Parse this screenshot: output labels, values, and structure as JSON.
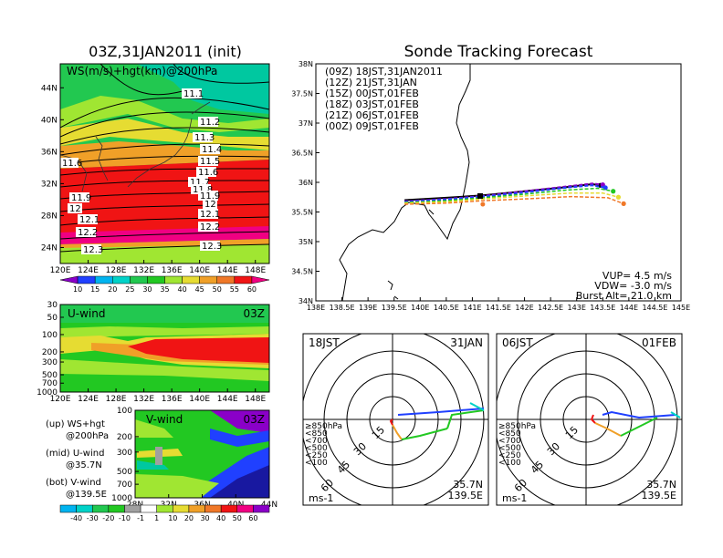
{
  "left_title": "03Z,31JAN2011 (init)",
  "main_title": "Sonde Tracking Forecast",
  "left_desc": [
    {
      "line1": "(up) WS+hgt",
      "line2": "@200hPa"
    },
    {
      "line1": "(mid) U-wind",
      "line2": "@35.7N"
    },
    {
      "line1": "(bot) V-wind",
      "line2": "@139.5E"
    }
  ],
  "colors": {
    "purple": "#8a00c8",
    "blue": "#2040ff",
    "lightblue": "#00b4f0",
    "cyan": "#00d2c8",
    "green": "#22c822",
    "lime": "#a0e632",
    "yellow": "#e6dc32",
    "orange": "#f0a028",
    "darkorange": "#f07828",
    "red": "#f01414",
    "magenta": "#f00082"
  },
  "chart_data": [
    {
      "type": "heatmap",
      "name": "ws_hgt_200hPa",
      "label": "WS(m/s)+hgt(km)@200hPa",
      "x_ticks": [
        "120E",
        "124E",
        "128E",
        "132E",
        "136E",
        "140E",
        "144E",
        "148E"
      ],
      "y_ticks": [
        "24N",
        "28N",
        "32N",
        "36N",
        "40N",
        "44N"
      ],
      "xlim": [
        120,
        150
      ],
      "ylim": [
        22,
        47
      ],
      "contour_labels": [
        "11.1",
        "11.2",
        "11.3",
        "11.4",
        "11.5",
        "11.6",
        "11.7",
        "11.8",
        "11.9",
        "12",
        "12.1",
        "12.2",
        "12.3",
        "11.6",
        "11.9",
        "12",
        "12.1",
        "12.2",
        "12.3"
      ],
      "colorbar": [
        "10",
        "15",
        "20",
        "25",
        "30",
        "35",
        "40",
        "45",
        "50",
        "55",
        "60"
      ]
    },
    {
      "type": "heatmap",
      "name": "u_wind_35.7N",
      "label": "U-wind",
      "time": "03Z",
      "x_ticks": [
        "120E",
        "124E",
        "128E",
        "132E",
        "136E",
        "140E",
        "144E",
        "148E"
      ],
      "y_ticks": [
        "30",
        "50",
        "100",
        "200",
        "300",
        "500",
        "700",
        "1000"
      ],
      "xlim": [
        120,
        150
      ],
      "ylim": [
        1000,
        30
      ]
    },
    {
      "type": "heatmap",
      "name": "v_wind_139.5E",
      "label": "V-wind",
      "time": "03Z",
      "x_ticks": [
        "28N",
        "32N",
        "36N",
        "40N",
        "44N"
      ],
      "y_ticks": [
        "100",
        "200",
        "300",
        "500",
        "700",
        "1000"
      ],
      "xlim": [
        28,
        44
      ],
      "ylim": [
        1000,
        100
      ],
      "colorbar": [
        "-40",
        "-30",
        "-20",
        "-10",
        "-1",
        "1",
        "10",
        "20",
        "30",
        "40",
        "50",
        "60"
      ]
    },
    {
      "type": "line",
      "name": "sonde_tracks",
      "title": "Sonde Tracking Forecast",
      "x_ticks": [
        "138E",
        "138.5E",
        "139E",
        "139.5E",
        "140E",
        "140.5E",
        "141E",
        "141.5E",
        "142E",
        "142.5E",
        "143E",
        "143.5E",
        "144E",
        "144.5E",
        "145E"
      ],
      "y_ticks": [
        "34N",
        "34.5N",
        "35N",
        "35.5N",
        "36N",
        "36.5N",
        "37N",
        "37.5N",
        "38N"
      ],
      "xlim": [
        138,
        145
      ],
      "ylim": [
        34,
        38
      ],
      "series": [
        {
          "name": "(09Z) 18JST,31JAN2011",
          "color": "#000000",
          "x": [
            139.7,
            140.5,
            141.2,
            142.0,
            142.8,
            143.3,
            143.45
          ],
          "y": [
            35.7,
            35.74,
            35.78,
            35.85,
            35.92,
            35.97,
            35.95
          ]
        },
        {
          "name": "(12Z) 21JST,31JAN",
          "color": "#8a00c8",
          "x": [
            139.7,
            140.5,
            141.2,
            142.0,
            142.8,
            143.3,
            143.5
          ],
          "y": [
            35.68,
            35.72,
            35.77,
            35.85,
            35.93,
            35.98,
            35.96
          ]
        },
        {
          "name": "(15Z) 00JST,01FEB",
          "color": "#2040ff",
          "x": [
            139.7,
            140.5,
            141.2,
            142.0,
            142.8,
            143.3,
            143.55
          ],
          "y": [
            35.67,
            35.71,
            35.76,
            35.83,
            35.91,
            35.95,
            35.91
          ]
        },
        {
          "name": "(18Z) 03JST,01FEB",
          "color": "#22c822",
          "x": [
            139.7,
            140.5,
            141.2,
            142.0,
            142.8,
            143.4,
            143.7
          ],
          "y": [
            35.66,
            35.69,
            35.74,
            35.8,
            35.87,
            35.9,
            35.85
          ]
        },
        {
          "name": "(21Z) 06JST,01FEB",
          "color": "#e6dc32",
          "x": [
            139.7,
            140.5,
            141.2,
            142.0,
            142.9,
            143.5,
            143.8
          ],
          "y": [
            35.65,
            35.67,
            35.72,
            35.77,
            35.82,
            35.82,
            35.75
          ]
        },
        {
          "name": "(00Z) 09JST,01FEB",
          "color": "#f07828",
          "x": [
            139.7,
            140.5,
            141.2,
            142.0,
            142.9,
            143.6,
            143.9
          ],
          "y": [
            35.63,
            35.65,
            35.69,
            35.72,
            35.76,
            35.74,
            35.64
          ]
        }
      ],
      "annotations": [
        "VUP= 4.5 m/s",
        "VDW= -3.0 m/s",
        "Burst Alt= 21.0 km"
      ]
    },
    {
      "type": "line",
      "name": "hodograph_18JST",
      "label_left": "18JST",
      "label_right": "31JAN",
      "ring_labels": [
        "15",
        "30",
        "45",
        "60"
      ],
      "legend": [
        "≥850hPa",
        "<850",
        "<700",
        "<500",
        "<250",
        "<100"
      ],
      "loc1": "35.7N",
      "loc2": "139.5E",
      "unit": "ms-1"
    },
    {
      "type": "line",
      "name": "hodograph_06JST",
      "label_left": "06JST",
      "label_right": "01FEB",
      "ring_labels": [
        "15",
        "30",
        "45",
        "60"
      ],
      "legend": [
        "≥850hPa",
        "<850",
        "<700",
        "<500",
        "<250",
        "<100"
      ],
      "loc1": "35.7N",
      "loc2": "139.5E",
      "unit": "ms-1"
    }
  ]
}
